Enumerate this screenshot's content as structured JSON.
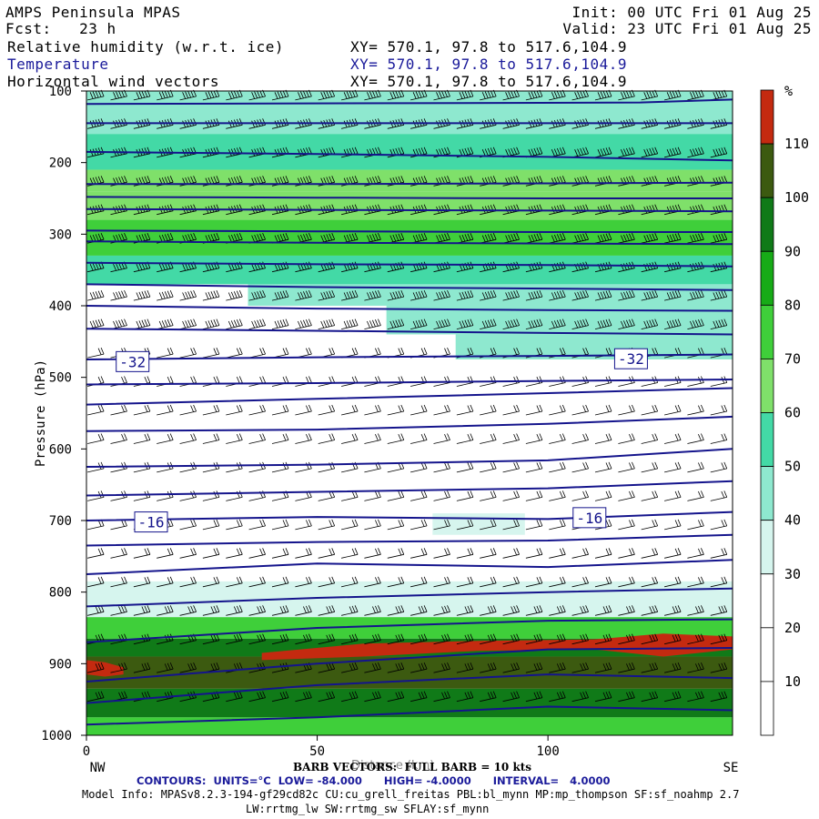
{
  "header": {
    "title": "AMPS Peninsula MPAS",
    "fcst": "Fcst:   23 h",
    "init": "Init: 00 UTC Fri 01 Aug 25",
    "valid": "Valid: 23 UTC Fri 01 Aug 25",
    "fields": [
      {
        "name": "Relative humidity (w.r.t. ice)",
        "xy": "XY= 570.1, 97.8 to 517.6,104.9"
      },
      {
        "name": "Temperature",
        "xy": "XY= 570.1, 97.8 to 517.6,104.9"
      },
      {
        "name": "Horizontal wind vectors",
        "xy": "XY= 570.1, 97.8 to 517.6,104.9"
      }
    ]
  },
  "footer": {
    "barb": "BARB VECTORS:  FULL BARB = 10 kts",
    "xlabel_overlap": "Distance (km)",
    "contours": "CONTOURS:  UNITS=°C  LOW= -84.000      HIGH= -4.0000      INTERVAL=   4.0000",
    "model_info": "Model Info: MPASv8.2.3-194-gf29cd82c CU:cu_grell_freitas PBL:bl_mynn MP:mp_thompson SF:sf_noahmp 2.7",
    "model_info2": "LW:rrtmg_lw SW:rrtmg_sw SFLAY:sf_mynn"
  },
  "chart_data": {
    "type": "heatmap",
    "title": "Relative humidity (w.r.t. ice), Temperature, Horizontal wind vectors",
    "xlabel": "Distance (km)",
    "ylabel": "Pressure (hPa)",
    "xlim": [
      0,
      140
    ],
    "ylim": [
      1000,
      100
    ],
    "x_ticks": [
      0,
      50,
      100
    ],
    "y_ticks": [
      100,
      200,
      300,
      400,
      500,
      600,
      700,
      800,
      900,
      1000
    ],
    "x_end_labels": {
      "left": "NW",
      "right": "SE"
    },
    "colorbar": {
      "unit": "%",
      "levels": [
        10,
        20,
        30,
        40,
        50,
        60,
        70,
        80,
        90,
        100,
        110
      ],
      "colors": [
        "#ffffff",
        "#ffffff",
        "#ffffff",
        "#d6f5ee",
        "#8ee8cf",
        "#43d9a6",
        "#7fe06a",
        "#3fcf3a",
        "#17ab17",
        "#107a18",
        "#3c5a10",
        "#c42a10"
      ]
    },
    "rh_bands": [
      {
        "p_top": 100,
        "p_bot": 160,
        "x0": 0,
        "x1": 140,
        "rh": 40
      },
      {
        "p_top": 160,
        "p_bot": 210,
        "x0": 0,
        "x1": 140,
        "rh": 50
      },
      {
        "p_top": 210,
        "p_bot": 240,
        "x0": 0,
        "x1": 140,
        "rh": 60
      },
      {
        "p_top": 240,
        "p_bot": 280,
        "x0": 0,
        "x1": 140,
        "rh": 65
      },
      {
        "p_top": 280,
        "p_bot": 330,
        "x0": 0,
        "x1": 140,
        "rh": 72
      },
      {
        "p_top": 330,
        "p_bot": 370,
        "x0": 0,
        "x1": 140,
        "rh": 55
      },
      {
        "p_top": 370,
        "p_bot": 400,
        "x0": 35,
        "x1": 140,
        "rh": 45
      },
      {
        "p_top": 400,
        "p_bot": 440,
        "x0": 65,
        "x1": 140,
        "rh": 48
      },
      {
        "p_top": 440,
        "p_bot": 475,
        "x0": 80,
        "x1": 140,
        "rh": 42
      },
      {
        "p_top": 690,
        "p_bot": 720,
        "x0": 75,
        "x1": 95,
        "rh": 35
      },
      {
        "p_top": 785,
        "p_bot": 835,
        "x0": 0,
        "x1": 140,
        "rh": 38
      },
      {
        "p_top": 835,
        "p_bot": 865,
        "x0": 0,
        "x1": 140,
        "rh": 70
      },
      {
        "p_top": 865,
        "p_bot": 890,
        "x0": 0,
        "x1": 140,
        "rh": 92
      },
      {
        "p_top": 890,
        "p_bot": 935,
        "x0": 0,
        "x1": 140,
        "rh": 102
      },
      {
        "p_top": 935,
        "p_bot": 975,
        "x0": 0,
        "x1": 140,
        "rh": 95
      },
      {
        "p_top": 975,
        "p_bot": 1000,
        "x0": 0,
        "x1": 140,
        "rh": 78
      }
    ],
    "rh_max_patches": [
      {
        "x": [
          38,
          60,
          85,
          110,
          125,
          140
        ],
        "p_top": [
          885,
          872,
          868,
          866,
          858,
          862
        ],
        "p_bot": [
          895,
          890,
          882,
          880,
          890,
          880
        ],
        "rh": 112
      },
      {
        "x": [
          0,
          4,
          8
        ],
        "p_top": [
          895,
          898,
          905
        ],
        "p_bot": [
          915,
          918,
          915
        ],
        "rh": 112
      }
    ],
    "temperature_isotherms": [
      {
        "p": [
          118,
          117,
          116,
          112
        ],
        "x": [
          0,
          70,
          120,
          140
        ]
      },
      {
        "p": [
          145,
          145,
          145,
          145
        ],
        "x": [
          0,
          50,
          100,
          140
        ]
      },
      {
        "p": [
          185,
          188,
          192,
          197
        ],
        "x": [
          0,
          50,
          100,
          140
        ]
      },
      {
        "p": [
          230,
          230,
          229,
          228
        ],
        "x": [
          0,
          50,
          100,
          140
        ]
      },
      {
        "p": [
          248,
          249,
          250,
          250
        ],
        "x": [
          0,
          50,
          100,
          140
        ]
      },
      {
        "p": [
          265,
          266,
          267,
          268
        ],
        "x": [
          0,
          50,
          100,
          140
        ]
      },
      {
        "p": [
          295,
          296,
          297,
          297
        ],
        "x": [
          0,
          50,
          100,
          140
        ]
      },
      {
        "p": [
          310,
          312,
          313,
          314
        ],
        "x": [
          0,
          50,
          100,
          140
        ]
      },
      {
        "p": [
          340,
          342,
          343,
          345
        ],
        "x": [
          0,
          50,
          100,
          140
        ]
      },
      {
        "p": [
          370,
          374,
          376,
          378
        ],
        "x": [
          0,
          50,
          100,
          140
        ]
      },
      {
        "p": [
          400,
          404,
          406,
          407
        ],
        "x": [
          0,
          50,
          100,
          140
        ]
      },
      {
        "p": [
          432,
          435,
          438,
          440
        ],
        "x": [
          0,
          50,
          100,
          140
        ]
      },
      {
        "p": [
          475,
          472,
          470,
          468
        ],
        "x": [
          0,
          50,
          100,
          140
        ]
      },
      {
        "p": [
          510,
          508,
          505,
          503
        ],
        "x": [
          0,
          50,
          100,
          140
        ]
      },
      {
        "p": [
          538,
          530,
          522,
          515
        ],
        "x": [
          0,
          50,
          100,
          140
        ]
      },
      {
        "p": [
          575,
          573,
          565,
          555
        ],
        "x": [
          0,
          50,
          100,
          140
        ]
      },
      {
        "p": [
          625,
          622,
          616,
          600
        ],
        "x": [
          0,
          50,
          100,
          140
        ]
      },
      {
        "p": [
          665,
          660,
          655,
          645
        ],
        "x": [
          0,
          50,
          100,
          140
        ]
      },
      {
        "p": [
          700,
          695,
          698,
          688
        ],
        "x": [
          0,
          50,
          100,
          140
        ]
      },
      {
        "p": [
          735,
          730,
          728,
          720
        ],
        "x": [
          0,
          50,
          100,
          140
        ]
      },
      {
        "p": [
          775,
          760,
          765,
          755
        ],
        "x": [
          0,
          50,
          100,
          140
        ]
      },
      {
        "p": [
          820,
          808,
          800,
          795
        ],
        "x": [
          0,
          50,
          100,
          140
        ]
      },
      {
        "p": [
          870,
          850,
          840,
          838
        ],
        "x": [
          0,
          50,
          100,
          140
        ]
      },
      {
        "p": [
          925,
          900,
          880,
          878
        ],
        "x": [
          0,
          50,
          100,
          140
        ]
      },
      {
        "p": [
          955,
          930,
          915,
          920
        ],
        "x": [
          0,
          50,
          100,
          140
        ]
      },
      {
        "p": [
          985,
          975,
          960,
          965
        ],
        "x": [
          0,
          50,
          100,
          140
        ]
      }
    ],
    "isotherm_labels": [
      {
        "text": "-32",
        "x": 10,
        "p": 478
      },
      {
        "text": "-32",
        "x": 118,
        "p": 474
      },
      {
        "text": "-16",
        "x": 14,
        "p": 702
      },
      {
        "text": "-16",
        "x": 109,
        "p": 696
      }
    ],
    "barbs": {
      "x_spacing_km": 5,
      "rows": 22,
      "speed_upper_kts": 50,
      "speed_mid_kts": 20,
      "speed_low_kts": 35
    }
  }
}
